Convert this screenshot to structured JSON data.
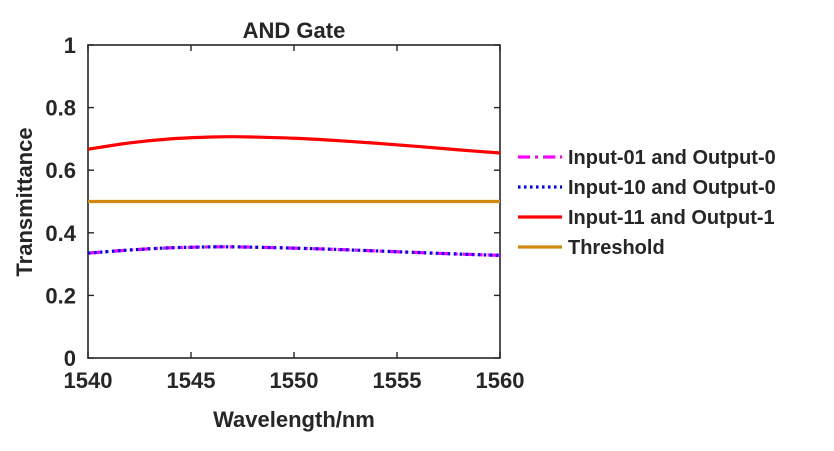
{
  "chart_data": {
    "type": "line",
    "title": "AND Gate",
    "xlabel": "Wavelength/nm",
    "ylabel": "Transmittance",
    "xlim": [
      1540,
      1560
    ],
    "ylim": [
      0,
      1
    ],
    "xticks": [
      1540,
      1545,
      1550,
      1555,
      1560
    ],
    "yticks": [
      0,
      0.2,
      0.4,
      0.6,
      0.8,
      1
    ],
    "xtick_labels": [
      "1540",
      "1545",
      "1550",
      "1555",
      "1560"
    ],
    "ytick_labels": [
      "0",
      "0.2",
      "0.4",
      "0.6",
      "0.8",
      "1"
    ],
    "grid": false,
    "legend_position": "outside-right",
    "series": [
      {
        "name": "Input-01 and Output-0",
        "color": "#ff00ff",
        "dash": "dash-dot",
        "x": [
          1540,
          1542,
          1544,
          1546,
          1547,
          1548,
          1550,
          1552,
          1554,
          1556,
          1558,
          1560
        ],
        "y": [
          0.335,
          0.345,
          0.352,
          0.355,
          0.355,
          0.354,
          0.351,
          0.347,
          0.342,
          0.337,
          0.332,
          0.328
        ]
      },
      {
        "name": "Input-10 and Output-0",
        "color": "#0000ff",
        "dash": "dotted",
        "x": [
          1540,
          1542,
          1544,
          1546,
          1547,
          1548,
          1550,
          1552,
          1554,
          1556,
          1558,
          1560
        ],
        "y": [
          0.335,
          0.345,
          0.352,
          0.355,
          0.355,
          0.354,
          0.351,
          0.347,
          0.342,
          0.337,
          0.332,
          0.328
        ]
      },
      {
        "name": "Input-11 and Output-1",
        "color": "#ff0000",
        "dash": "solid",
        "x": [
          1540,
          1542,
          1544,
          1546,
          1547,
          1548,
          1550,
          1552,
          1554,
          1556,
          1558,
          1560
        ],
        "y": [
          0.667,
          0.687,
          0.7,
          0.706,
          0.707,
          0.706,
          0.702,
          0.695,
          0.686,
          0.676,
          0.665,
          0.655
        ]
      },
      {
        "name": "Threshold",
        "color": "#d08a10",
        "dash": "solid",
        "x": [
          1540,
          1560
        ],
        "y": [
          0.5,
          0.5
        ]
      }
    ]
  }
}
